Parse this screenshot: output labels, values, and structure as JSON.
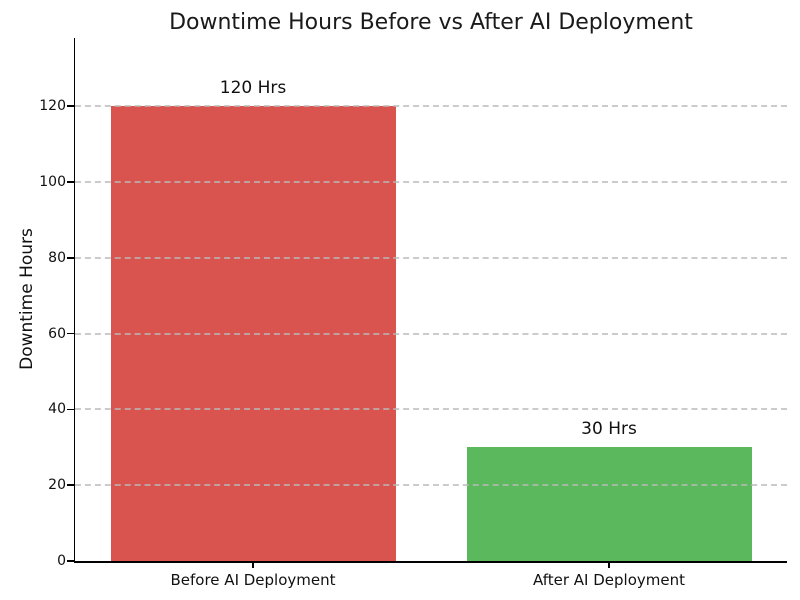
{
  "chart_data": {
    "type": "bar",
    "title": "Downtime Hours Before vs After AI Deployment",
    "xlabel": "",
    "ylabel": "Downtime Hours",
    "categories": [
      "Before AI Deployment",
      "After AI Deployment"
    ],
    "values": [
      120,
      30
    ],
    "bar_value_labels": [
      "120 Hrs",
      "30 Hrs"
    ],
    "bar_colors": [
      "#d9534f",
      "#5cb85c"
    ],
    "yticks": [
      0,
      20,
      40,
      60,
      80,
      100,
      120
    ],
    "ylim": [
      0,
      138
    ],
    "grid": "horizontal dashed, drawn over bars",
    "grid_color": "#b9b9b9",
    "legend": "none",
    "background_color": "#ffffff",
    "spine_color": "#000000",
    "text_color": "#111111"
  }
}
